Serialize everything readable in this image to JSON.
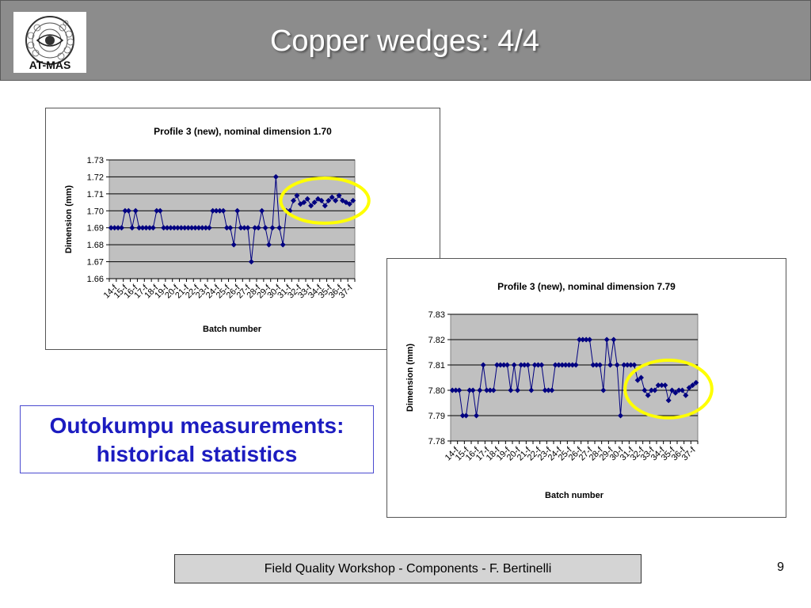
{
  "slide": {
    "title": "Copper wedges: 4/4",
    "logo_text": "AT-MAS",
    "stats_line1": "Outokumpu measurements:",
    "stats_line2": "historical statistics",
    "footer": "Field Quality Workshop -  Components - F. Bertinelli",
    "page_number": "9"
  },
  "colors": {
    "header_bg": "#8c8c8c",
    "plot_bg": "#c0c0c0",
    "series": "#000080",
    "highlight": "#ffff00",
    "stats_text": "#1c1cc0"
  },
  "chart_data": [
    {
      "type": "line",
      "title": "Profile 3 (new), nominal dimension 1.70",
      "xlabel": "Batch number",
      "ylabel": "Dimension (mm)",
      "ylim": [
        1.66,
        1.73
      ],
      "yticks": [
        "1.66",
        "1.67",
        "1.68",
        "1.69",
        "1.70",
        "1.71",
        "1.72",
        "1.73"
      ],
      "tick_labels": [
        "14-f",
        "15-f",
        "16-f",
        "17-f",
        "18-f",
        "19-f",
        "20-f",
        "21-f",
        "22-f",
        "23-f",
        "24-f",
        "25-f",
        "26-f",
        "27-f",
        "28-f",
        "29-f",
        "30-f",
        "31-f",
        "32-f",
        "33-f",
        "34-f",
        "35-f",
        "36-f",
        "37-f"
      ],
      "grid": true,
      "marker": "diamond",
      "highlight": "last 18 points circled",
      "series": [
        {
          "values": [
            1.69,
            1.69,
            1.69,
            1.69,
            1.7,
            1.7,
            1.69,
            1.7,
            1.69,
            1.69,
            1.69,
            1.69,
            1.69,
            1.7,
            1.7,
            1.69,
            1.69,
            1.69,
            1.69,
            1.69,
            1.69,
            1.69,
            1.69,
            1.69,
            1.69,
            1.69,
            1.69,
            1.69,
            1.69,
            1.7,
            1.7,
            1.7,
            1.7,
            1.69,
            1.69,
            1.68,
            1.7,
            1.69,
            1.69,
            1.69,
            1.67,
            1.69,
            1.69,
            1.7,
            1.69,
            1.68,
            1.69,
            1.72,
            1.69,
            1.68,
            1.7,
            1.7,
            1.706,
            1.709,
            1.704,
            1.705,
            1.707,
            1.703,
            1.705,
            1.707,
            1.706,
            1.703,
            1.706,
            1.708,
            1.706,
            1.709,
            1.706,
            1.705,
            1.704,
            1.706
          ]
        }
      ]
    },
    {
      "type": "line",
      "title": "Profile 3 (new), nominal dimension 7.79",
      "xlabel": "Batch number",
      "ylabel": "Dimension (mm)",
      "ylim": [
        7.78,
        7.83
      ],
      "yticks": [
        "7.78",
        "7.79",
        "7.80",
        "7.81",
        "7.82",
        "7.83"
      ],
      "tick_labels": [
        "14-f",
        "15-f",
        "16-f",
        "17-f",
        "18-f",
        "19-f",
        "20-f",
        "21-f",
        "22-f",
        "23-f",
        "24-f",
        "25-f",
        "26-f",
        "27-f",
        "28-f",
        "29-f",
        "30-f",
        "31-f",
        "32-f",
        "33-f",
        "34-f",
        "35-f",
        "36-f",
        "37-f"
      ],
      "grid": true,
      "marker": "diamond",
      "highlight": "last 18 points circled",
      "series": [
        {
          "values": [
            7.8,
            7.8,
            7.8,
            7.79,
            7.79,
            7.8,
            7.8,
            7.79,
            7.8,
            7.81,
            7.8,
            7.8,
            7.8,
            7.81,
            7.81,
            7.81,
            7.81,
            7.8,
            7.81,
            7.8,
            7.81,
            7.81,
            7.81,
            7.8,
            7.81,
            7.81,
            7.81,
            7.8,
            7.8,
            7.8,
            7.81,
            7.81,
            7.81,
            7.81,
            7.81,
            7.81,
            7.81,
            7.82,
            7.82,
            7.82,
            7.82,
            7.81,
            7.81,
            7.81,
            7.8,
            7.82,
            7.81,
            7.82,
            7.81,
            7.79,
            7.81,
            7.81,
            7.81,
            7.81,
            7.804,
            7.805,
            7.8,
            7.798,
            7.8,
            7.8,
            7.802,
            7.802,
            7.802,
            7.796,
            7.8,
            7.799,
            7.8,
            7.8,
            7.798,
            7.801,
            7.802,
            7.803
          ]
        }
      ]
    }
  ]
}
